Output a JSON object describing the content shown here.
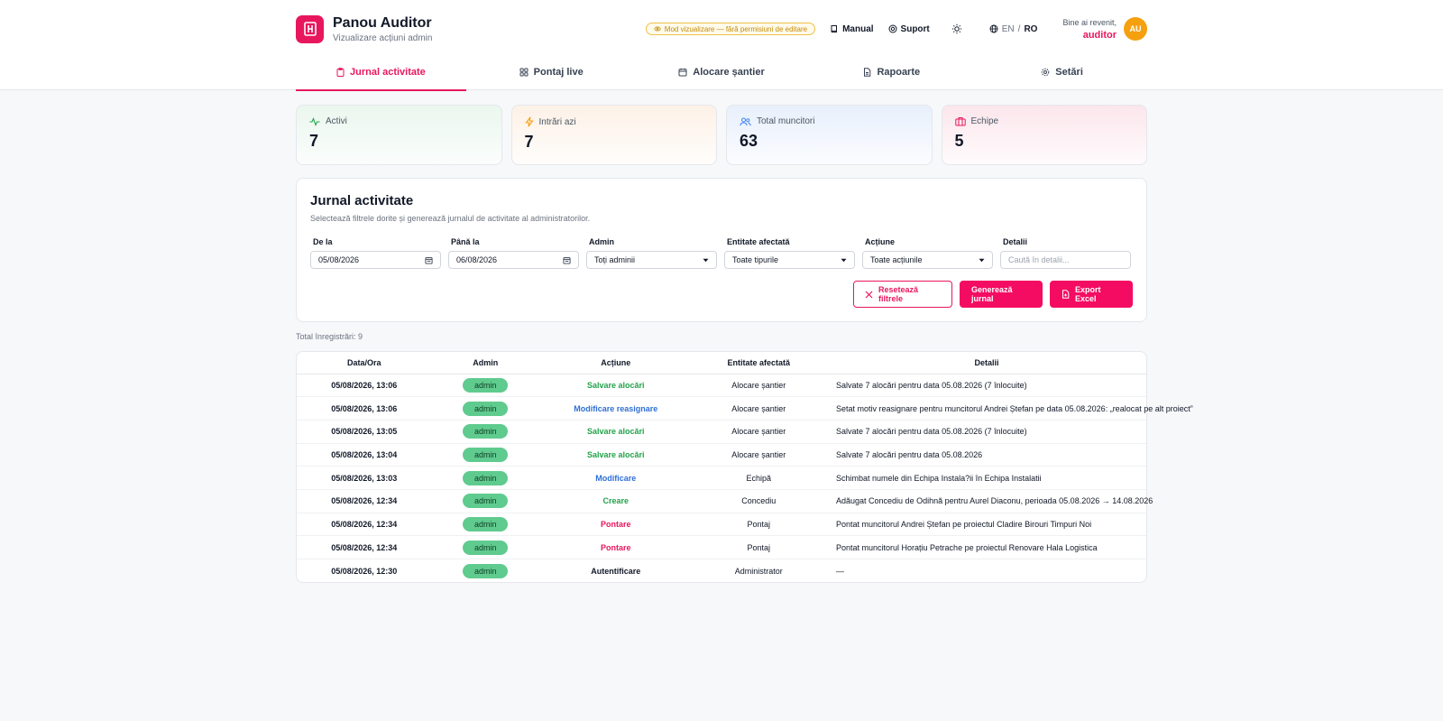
{
  "brand": {
    "title": "Panou Auditor",
    "subtitle": "Vizualizare acțiuni admin"
  },
  "header": {
    "mode_badge": "Mod vizualizare — fără permisiuni de editare",
    "manual": "Manual",
    "support": "Suport",
    "lang_en": "EN",
    "lang_sep": "/",
    "lang_ro": "RO",
    "welcome": "Bine ai revenit,",
    "username": "auditor",
    "avatar_initials": "AU"
  },
  "tabs": [
    {
      "label": "Jurnal activitate",
      "icon": "clipboard-icon",
      "active": true
    },
    {
      "label": "Pontaj live",
      "icon": "grid-icon",
      "active": false
    },
    {
      "label": "Alocare șantier",
      "icon": "calendar-icon",
      "active": false
    },
    {
      "label": "Rapoarte",
      "icon": "file-icon",
      "active": false
    },
    {
      "label": "Setări",
      "icon": "gear-icon",
      "active": false
    }
  ],
  "stats": [
    {
      "label": "Activi",
      "value": "7",
      "icon": "activity-icon",
      "color": "#22a34a"
    },
    {
      "label": "Intrări azi",
      "value": "7",
      "icon": "bolt-icon",
      "color": "#f5a00f"
    },
    {
      "label": "Total muncitori",
      "value": "63",
      "icon": "users-icon",
      "color": "#3b82f6"
    },
    {
      "label": "Echipe",
      "value": "5",
      "icon": "briefcase-icon",
      "color": "#e8175d"
    }
  ],
  "filter": {
    "title": "Jurnal activitate",
    "subtitle": "Selectează filtrele dorite și generează jurnalul de activitate al administratorilor.",
    "from_label": "De la",
    "from_value": "05/08/2026",
    "to_label": "Până la",
    "to_value": "06/08/2026",
    "admin_label": "Admin",
    "admin_value": "Toți adminii",
    "entity_label": "Entitate afectată",
    "entity_value": "Toate tipurile",
    "action_label": "Acțiune",
    "action_value": "Toate acțiunile",
    "details_label": "Detalii",
    "details_placeholder": "Caută în detalii...",
    "reset_button": "Resetează filtrele",
    "generate_button": "Generează jurnal",
    "export_button": "Export Excel"
  },
  "total_records": "Total înregistrări: 9",
  "table": {
    "headers": [
      "Data/Ora",
      "Admin",
      "Acțiune",
      "Entitate afectată",
      "Detalii"
    ],
    "rows": [
      {
        "date": "05/08/2026, 13:06",
        "admin": "admin",
        "action": "Salvare alocări",
        "action_color": "green",
        "entity": "Alocare șantier",
        "details": "Salvate 7 alocări pentru data 05.08.2026 (7 înlocuite)"
      },
      {
        "date": "05/08/2026, 13:06",
        "admin": "admin",
        "action": "Modificare reasignare",
        "action_color": "blue",
        "entity": "Alocare șantier",
        "details": "Setat motiv reasignare pentru muncitorul Andrei Ștefan pe data 05.08.2026: „realocat pe alt proiect”"
      },
      {
        "date": "05/08/2026, 13:05",
        "admin": "admin",
        "action": "Salvare alocări",
        "action_color": "green",
        "entity": "Alocare șantier",
        "details": "Salvate 7 alocări pentru data 05.08.2026 (7 înlocuite)"
      },
      {
        "date": "05/08/2026, 13:04",
        "admin": "admin",
        "action": "Salvare alocări",
        "action_color": "green",
        "entity": "Alocare șantier",
        "details": "Salvate 7 alocări pentru data 05.08.2026"
      },
      {
        "date": "05/08/2026, 13:03",
        "admin": "admin",
        "action": "Modificare",
        "action_color": "blue",
        "entity": "Echipă",
        "details": "Schimbat numele din Echipa Instala?ii în Echipa Instalatii"
      },
      {
        "date": "05/08/2026, 12:34",
        "admin": "admin",
        "action": "Creare",
        "action_color": "green",
        "entity": "Concediu",
        "details": "Adăugat Concediu de Odihnă pentru Aurel Diaconu, perioada 05.08.2026 → 14.08.2026"
      },
      {
        "date": "05/08/2026, 12:34",
        "admin": "admin",
        "action": "Pontare",
        "action_color": "pink",
        "entity": "Pontaj",
        "details": "Pontat muncitorul Andrei Ștefan pe proiectul Cladire Birouri Timpuri Noi"
      },
      {
        "date": "05/08/2026, 12:34",
        "admin": "admin",
        "action": "Pontare",
        "action_color": "pink",
        "entity": "Pontaj",
        "details": "Pontat muncitorul Horațiu Petrache pe proiectul Renovare Hala Logistica"
      },
      {
        "date": "05/08/2026, 12:30",
        "admin": "admin",
        "action": "Autentificare",
        "action_color": "dark",
        "entity": "Administrator",
        "details": "—"
      }
    ]
  },
  "colors": {
    "accent": "#e8175d",
    "button": "#f40c62",
    "admin_pill": "#5fcb8e",
    "avatar": "#f5a00f"
  }
}
